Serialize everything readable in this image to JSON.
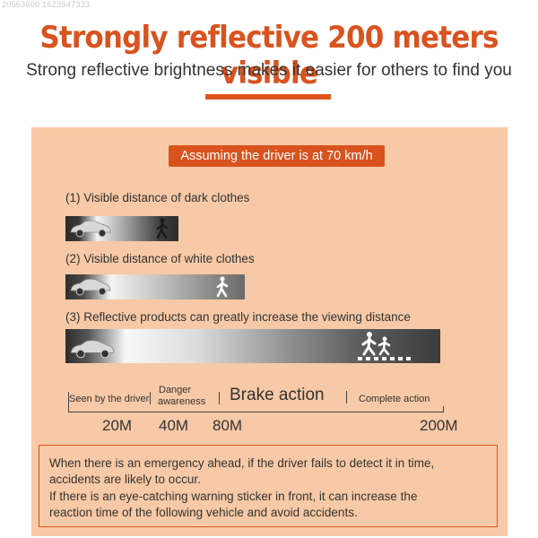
{
  "watermark": "20563600 1623947333",
  "title": "Strongly reflective 200 meters visible",
  "subtitle": "Strong reflective brightness makes it easier for others to find you",
  "colors": {
    "accent": "#d9531e",
    "panel": "#f7c9a6"
  },
  "banner": "Assuming the driver is at 70 km/h",
  "items": [
    {
      "label": "(1)  Visible distance of dark clothes",
      "icon": "walking-person-icon"
    },
    {
      "label": "(2)  Visible distance of white clothes",
      "icon": "walking-person-icon"
    },
    {
      "label": "(3)  Reflective products can greatly increase the viewing distance",
      "icon": "pedestrians-crossing-icon"
    }
  ],
  "scale": {
    "seen": "Seen by the driver",
    "danger_1": "Danger",
    "danger_2": "awareness",
    "brake": "Brake action",
    "complete": "Complete action",
    "marks": [
      "20M",
      "40M",
      "80M",
      "200M"
    ]
  },
  "notes": [
    "When there is an emergency ahead, if the driver fails to detect it in time,",
    "accidents are likely to occur.",
    "If there is an eye-catching warning sticker in front, it can increase the",
    "reaction time of the following vehicle and avoid accidents."
  ]
}
